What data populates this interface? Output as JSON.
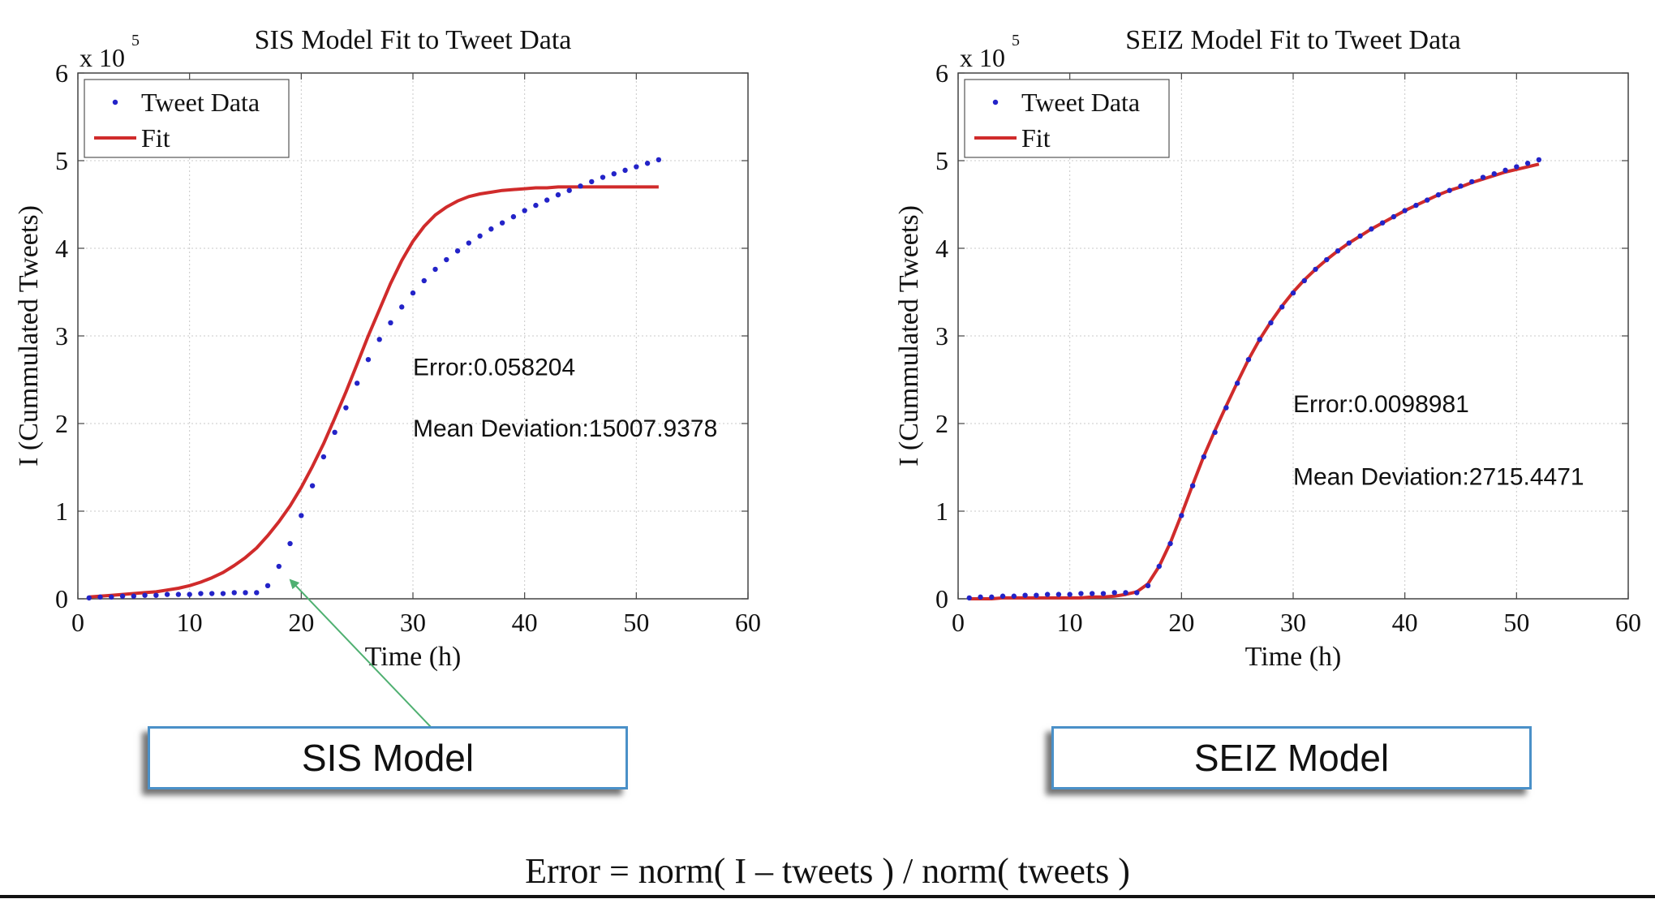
{
  "colors": {
    "data_points": "#2323c8",
    "fit_line": "#d02b2b",
    "arrow": "#4fb071",
    "box_border": "#4a90c8"
  },
  "chart_data": [
    {
      "type": "scatter",
      "title": "SIS Model Fit to Tweet Data",
      "xlabel": "Time (h)",
      "ylabel": "I (Cummulated Tweets)",
      "xlim": [
        0,
        60
      ],
      "ylim": [
        0,
        6
      ],
      "xticks": [
        "0",
        "10",
        "20",
        "30",
        "40",
        "50",
        "60"
      ],
      "yticks": [
        "0",
        "1",
        "2",
        "3",
        "4",
        "5",
        "6"
      ],
      "y_multiplier_base": "x 10",
      "y_multiplier_exp": "5",
      "grid": true,
      "legend": {
        "position": "top-left",
        "entries": [
          "Tweet Data",
          "Fit"
        ]
      },
      "annotations": {
        "error": "Error:0.058204",
        "deviation": "Mean Deviation:15007.9378"
      },
      "series": [
        {
          "name": "Tweet Data",
          "style": "points",
          "x": [
            1,
            2,
            3,
            4,
            5,
            6,
            7,
            8,
            9,
            10,
            11,
            12,
            13,
            14,
            15,
            16,
            17,
            18,
            19,
            20,
            21,
            22,
            23,
            24,
            25,
            26,
            27,
            28,
            29,
            30,
            31,
            32,
            33,
            34,
            35,
            36,
            37,
            38,
            39,
            40,
            41,
            42,
            43,
            44,
            45,
            46,
            47,
            48,
            49,
            50,
            51,
            52
          ],
          "y": [
            0.01,
            0.02,
            0.02,
            0.03,
            0.03,
            0.04,
            0.04,
            0.05,
            0.05,
            0.05,
            0.06,
            0.06,
            0.06,
            0.07,
            0.07,
            0.07,
            0.15,
            0.37,
            0.63,
            0.95,
            1.29,
            1.62,
            1.9,
            2.18,
            2.46,
            2.73,
            2.96,
            3.15,
            3.33,
            3.49,
            3.63,
            3.76,
            3.87,
            3.97,
            4.06,
            4.14,
            4.22,
            4.29,
            4.36,
            4.43,
            4.49,
            4.55,
            4.61,
            4.66,
            4.71,
            4.76,
            4.81,
            4.85,
            4.89,
            4.93,
            4.97,
            5.01
          ]
        },
        {
          "name": "Fit",
          "style": "line",
          "x": [
            1,
            2,
            3,
            4,
            5,
            6,
            7,
            8,
            9,
            10,
            11,
            12,
            13,
            14,
            15,
            16,
            17,
            18,
            19,
            20,
            21,
            22,
            23,
            24,
            25,
            26,
            27,
            28,
            29,
            30,
            31,
            32,
            33,
            34,
            35,
            36,
            37,
            38,
            39,
            40,
            41,
            42,
            43,
            44,
            45,
            46,
            47,
            48,
            49,
            50,
            51,
            52
          ],
          "y": [
            0.02,
            0.03,
            0.04,
            0.05,
            0.06,
            0.07,
            0.08,
            0.1,
            0.12,
            0.15,
            0.19,
            0.24,
            0.3,
            0.38,
            0.47,
            0.58,
            0.72,
            0.88,
            1.06,
            1.27,
            1.51,
            1.77,
            2.06,
            2.36,
            2.68,
            3.0,
            3.3,
            3.6,
            3.86,
            4.08,
            4.25,
            4.38,
            4.47,
            4.54,
            4.59,
            4.62,
            4.64,
            4.66,
            4.67,
            4.68,
            4.69,
            4.69,
            4.7,
            4.7,
            4.7,
            4.7,
            4.7,
            4.7,
            4.7,
            4.7,
            4.7,
            4.7
          ]
        }
      ]
    },
    {
      "type": "scatter",
      "title": "SEIZ Model Fit to Tweet Data",
      "xlabel": "Time (h)",
      "ylabel": "I (Cummulated Tweets)",
      "xlim": [
        0,
        60
      ],
      "ylim": [
        0,
        6
      ],
      "xticks": [
        "0",
        "10",
        "20",
        "30",
        "40",
        "50",
        "60"
      ],
      "yticks": [
        "0",
        "1",
        "2",
        "3",
        "4",
        "5",
        "6"
      ],
      "y_multiplier_base": "x 10",
      "y_multiplier_exp": "5",
      "grid": true,
      "legend": {
        "position": "top-left",
        "entries": [
          "Tweet Data",
          "Fit"
        ]
      },
      "annotations": {
        "error": "Error:0.0098981",
        "deviation": "Mean Deviation:2715.4471"
      },
      "series": [
        {
          "name": "Tweet Data",
          "style": "points",
          "x": [
            1,
            2,
            3,
            4,
            5,
            6,
            7,
            8,
            9,
            10,
            11,
            12,
            13,
            14,
            15,
            16,
            17,
            18,
            19,
            20,
            21,
            22,
            23,
            24,
            25,
            26,
            27,
            28,
            29,
            30,
            31,
            32,
            33,
            34,
            35,
            36,
            37,
            38,
            39,
            40,
            41,
            42,
            43,
            44,
            45,
            46,
            47,
            48,
            49,
            50,
            51,
            52
          ],
          "y": [
            0.01,
            0.02,
            0.02,
            0.03,
            0.03,
            0.04,
            0.04,
            0.05,
            0.05,
            0.05,
            0.06,
            0.06,
            0.06,
            0.07,
            0.07,
            0.07,
            0.15,
            0.37,
            0.63,
            0.95,
            1.29,
            1.62,
            1.9,
            2.18,
            2.46,
            2.73,
            2.96,
            3.15,
            3.33,
            3.49,
            3.63,
            3.76,
            3.87,
            3.97,
            4.06,
            4.14,
            4.22,
            4.29,
            4.36,
            4.43,
            4.49,
            4.55,
            4.61,
            4.66,
            4.71,
            4.76,
            4.81,
            4.85,
            4.89,
            4.93,
            4.97,
            5.01
          ]
        },
        {
          "name": "Fit",
          "style": "line",
          "x": [
            1,
            2,
            3,
            4,
            5,
            6,
            7,
            8,
            9,
            10,
            11,
            12,
            13,
            14,
            15,
            16,
            17,
            18,
            19,
            20,
            21,
            22,
            23,
            24,
            25,
            26,
            27,
            28,
            29,
            30,
            31,
            32,
            33,
            34,
            35,
            36,
            37,
            38,
            39,
            40,
            41,
            42,
            43,
            44,
            45,
            46,
            47,
            48,
            49,
            50,
            51,
            52
          ],
          "y": [
            0.0,
            0.0,
            0.0,
            0.01,
            0.01,
            0.01,
            0.01,
            0.01,
            0.01,
            0.01,
            0.01,
            0.02,
            0.02,
            0.03,
            0.05,
            0.08,
            0.17,
            0.37,
            0.64,
            0.96,
            1.3,
            1.63,
            1.92,
            2.2,
            2.47,
            2.73,
            2.96,
            3.16,
            3.34,
            3.5,
            3.64,
            3.76,
            3.87,
            3.97,
            4.06,
            4.14,
            4.22,
            4.29,
            4.36,
            4.43,
            4.49,
            4.55,
            4.61,
            4.66,
            4.7,
            4.75,
            4.79,
            4.83,
            4.87,
            4.9,
            4.93,
            4.96
          ]
        }
      ]
    }
  ],
  "labels": {
    "sis_box": "SIS Model",
    "seiz_box": "SEIZ Model",
    "formula": "Error = norm( I – tweets ) / norm( tweets )"
  }
}
